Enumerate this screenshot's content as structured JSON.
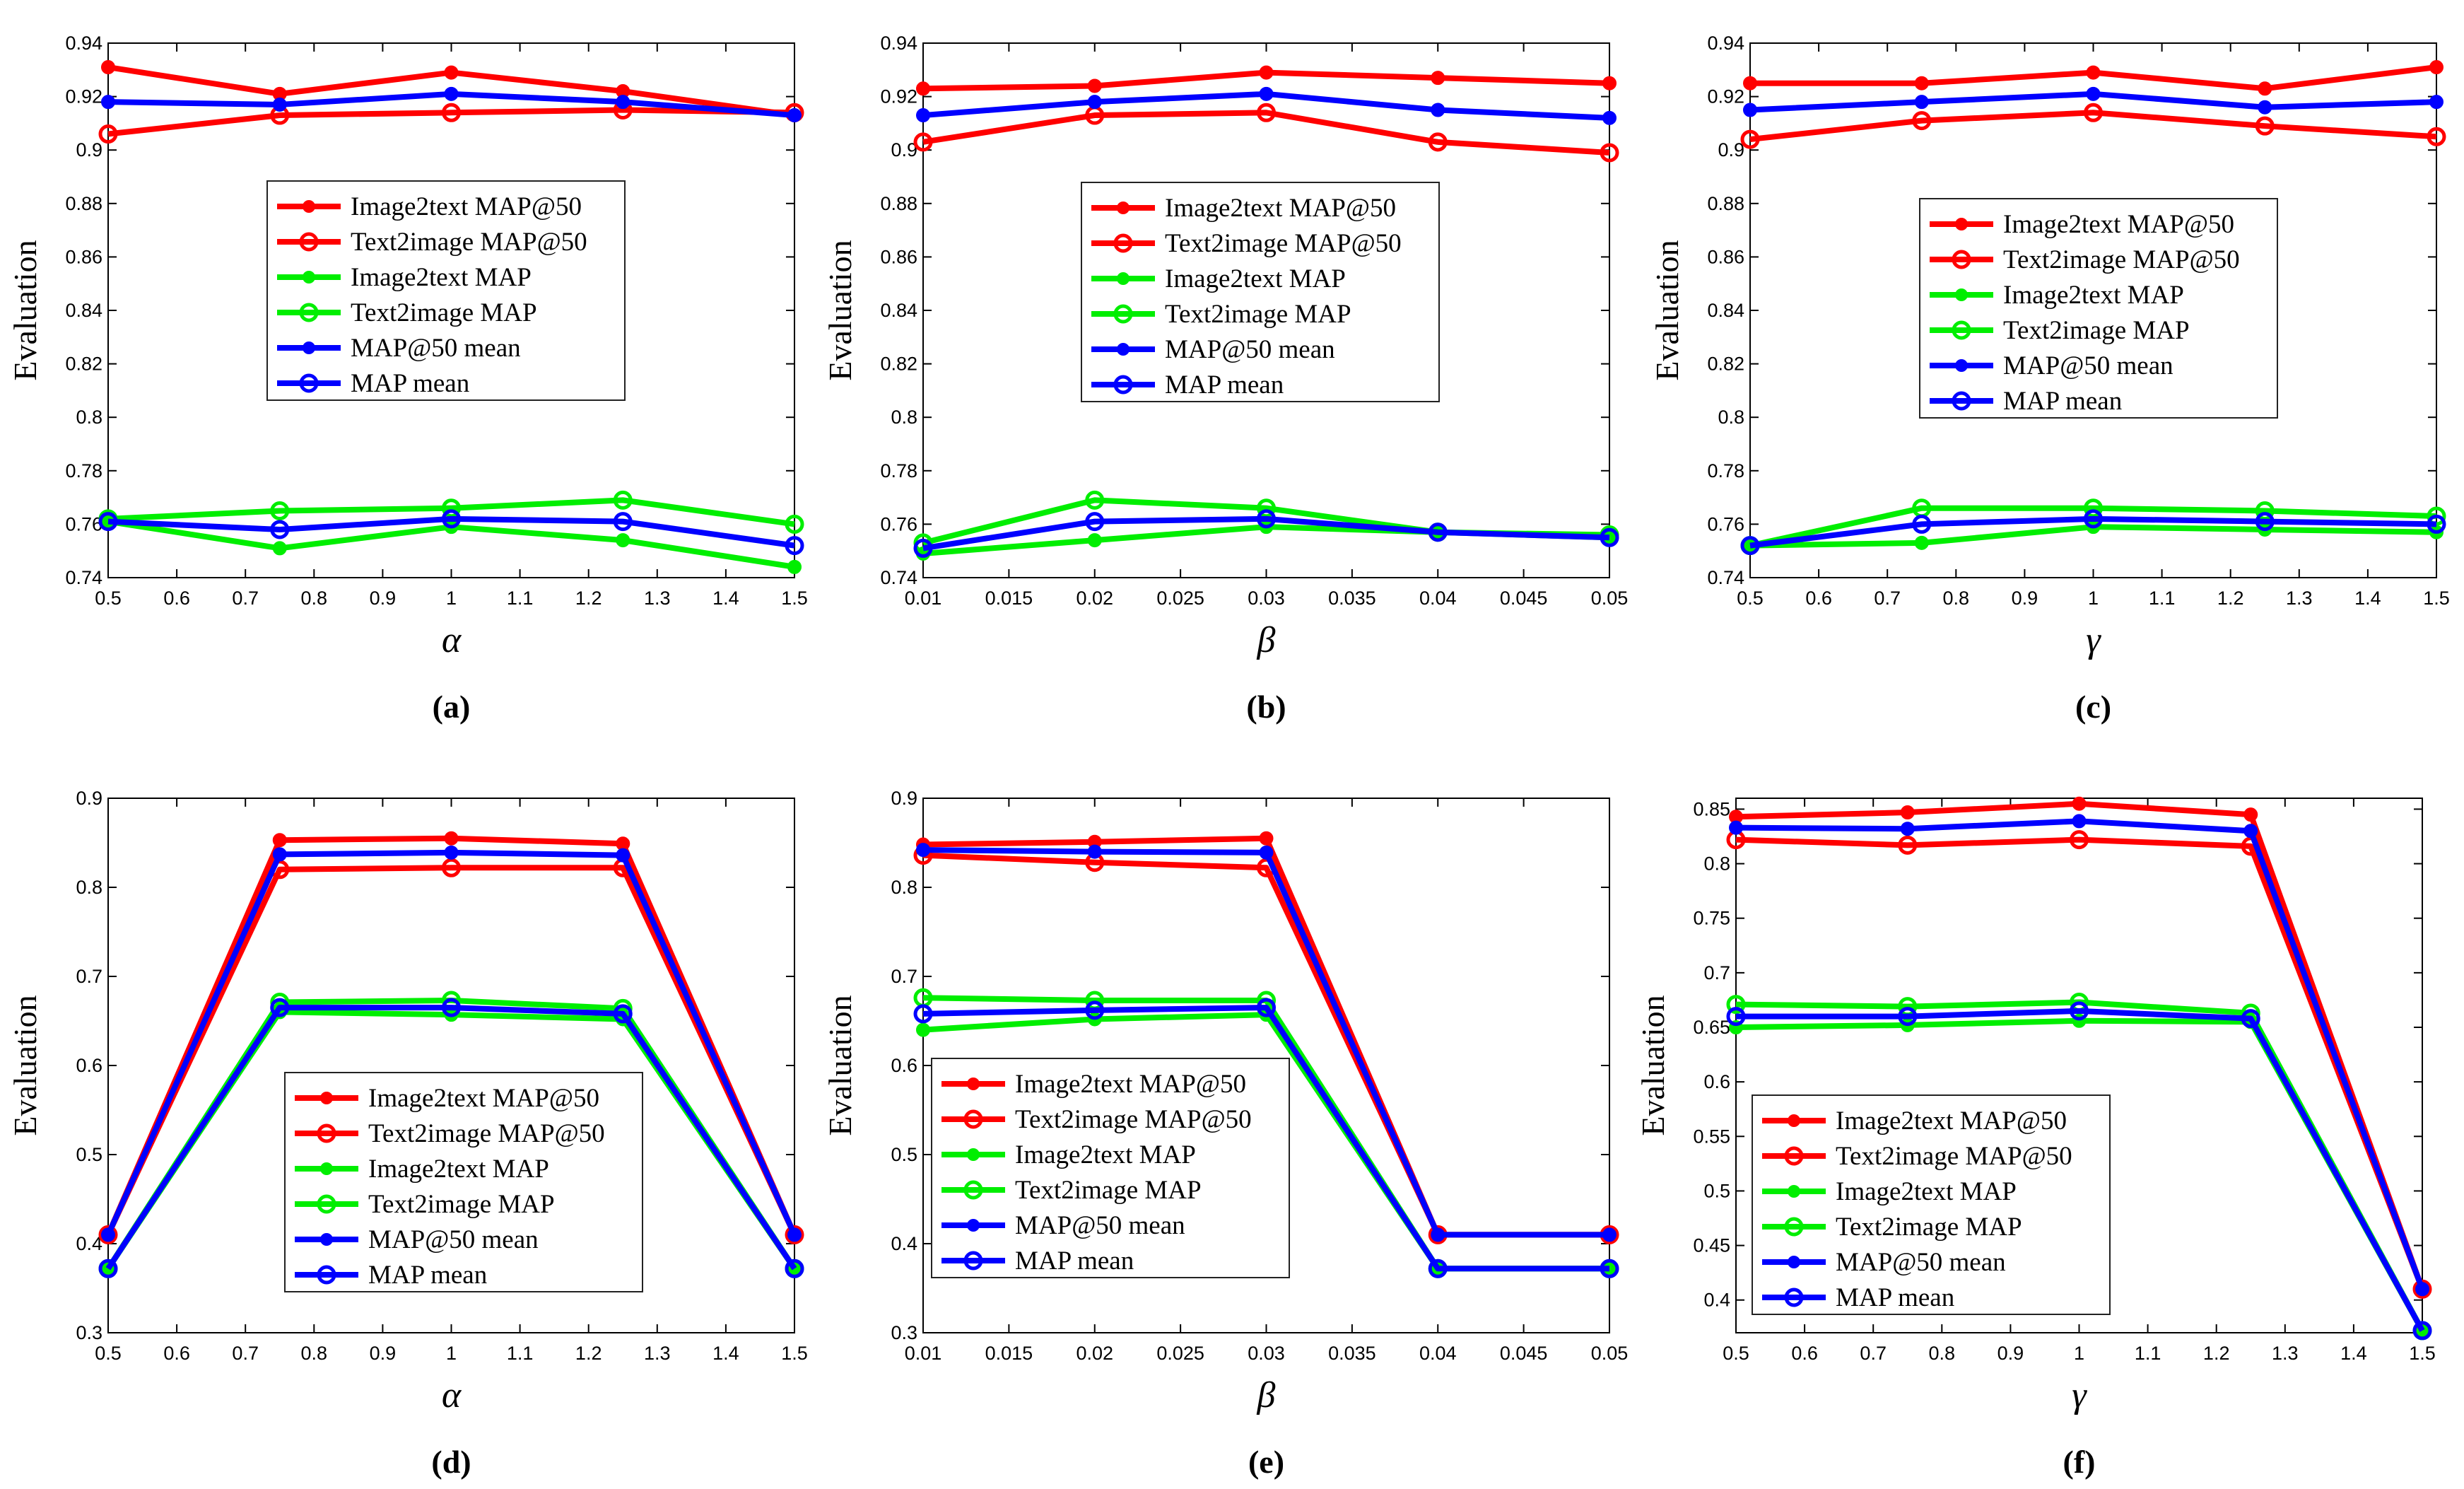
{
  "colors": {
    "image2text_map50": "#ff0000",
    "text2image_map50": "#ff0000",
    "image2text_map": "#00ee00",
    "text2image_map": "#00ee00",
    "map50_mean": "#0000ff",
    "map_mean": "#0000ff"
  },
  "chart_data": [
    {
      "id": "a",
      "type": "line",
      "panel_label": "(a)",
      "xlabel": "α",
      "ylabel": "Evaluation",
      "x": [
        0.5,
        0.75,
        1.0,
        1.25,
        1.5
      ],
      "xlim": [
        0.5,
        1.5
      ],
      "ylim": [
        0.74,
        0.94
      ],
      "xticks": [
        "0.5",
        "0.6",
        "0.7",
        "0.8",
        "0.9",
        "1",
        "1.1",
        "1.2",
        "1.3",
        "1.4",
        "1.5"
      ],
      "yticks": [
        "0.74",
        "0.76",
        "0.78",
        "0.8",
        "0.82",
        "0.84",
        "0.86",
        "0.88",
        "0.9",
        "0.92",
        "0.94"
      ],
      "legend_position": "center",
      "series": [
        {
          "name": "Image2text MAP@50",
          "color": "#ff0000",
          "marker": "dot",
          "values": [
            0.931,
            0.921,
            0.929,
            0.922,
            0.913
          ]
        },
        {
          "name": "Text2image MAP@50",
          "color": "#ff0000",
          "marker": "circle",
          "values": [
            0.906,
            0.913,
            0.914,
            0.915,
            0.914
          ]
        },
        {
          "name": "Image2text MAP",
          "color": "#00ee00",
          "marker": "dot",
          "values": [
            0.761,
            0.751,
            0.759,
            0.754,
            0.744
          ]
        },
        {
          "name": "Text2image MAP",
          "color": "#00ee00",
          "marker": "circle",
          "values": [
            0.762,
            0.765,
            0.766,
            0.769,
            0.76
          ]
        },
        {
          "name": "MAP@50 mean",
          "color": "#0000ff",
          "marker": "dot",
          "values": [
            0.918,
            0.917,
            0.921,
            0.918,
            0.913
          ]
        },
        {
          "name": "MAP mean",
          "color": "#0000ff",
          "marker": "circle",
          "values": [
            0.761,
            0.758,
            0.762,
            0.761,
            0.752
          ]
        }
      ]
    },
    {
      "id": "b",
      "type": "line",
      "panel_label": "(b)",
      "xlabel": "β",
      "ylabel": "Evaluation",
      "x": [
        0.01,
        0.02,
        0.03,
        0.04,
        0.05
      ],
      "xlim": [
        0.01,
        0.05
      ],
      "ylim": [
        0.74,
        0.94
      ],
      "xticks": [
        "0.01",
        "0.015",
        "0.02",
        "0.025",
        "0.03",
        "0.035",
        "0.04",
        "0.045",
        "0.05"
      ],
      "yticks": [
        "0.74",
        "0.76",
        "0.78",
        "0.8",
        "0.82",
        "0.84",
        "0.86",
        "0.88",
        "0.9",
        "0.92",
        "0.94"
      ],
      "legend_position": "center",
      "series": [
        {
          "name": "Image2text MAP@50",
          "color": "#ff0000",
          "marker": "dot",
          "values": [
            0.923,
            0.924,
            0.929,
            0.927,
            0.925
          ]
        },
        {
          "name": "Text2image MAP@50",
          "color": "#ff0000",
          "marker": "circle",
          "values": [
            0.903,
            0.913,
            0.914,
            0.903,
            0.899
          ]
        },
        {
          "name": "Image2text MAP",
          "color": "#00ee00",
          "marker": "dot",
          "values": [
            0.749,
            0.754,
            0.759,
            0.757,
            0.755
          ]
        },
        {
          "name": "Text2image MAP",
          "color": "#00ee00",
          "marker": "circle",
          "values": [
            0.753,
            0.769,
            0.766,
            0.757,
            0.756
          ]
        },
        {
          "name": "MAP@50 mean",
          "color": "#0000ff",
          "marker": "dot",
          "values": [
            0.913,
            0.918,
            0.921,
            0.915,
            0.912
          ]
        },
        {
          "name": "MAP mean",
          "color": "#0000ff",
          "marker": "circle",
          "values": [
            0.751,
            0.761,
            0.762,
            0.757,
            0.755
          ]
        }
      ]
    },
    {
      "id": "c",
      "type": "line",
      "panel_label": "(c)",
      "xlabel": "γ",
      "ylabel": "Evaluation",
      "x": [
        0.5,
        0.75,
        1.0,
        1.25,
        1.5
      ],
      "xlim": [
        0.5,
        1.5
      ],
      "ylim": [
        0.74,
        0.94
      ],
      "xticks": [
        "0.5",
        "0.6",
        "0.7",
        "0.8",
        "0.9",
        "1",
        "1.1",
        "1.2",
        "1.3",
        "1.4",
        "1.5"
      ],
      "yticks": [
        "0.74",
        "0.76",
        "0.78",
        "0.8",
        "0.82",
        "0.84",
        "0.86",
        "0.88",
        "0.9",
        "0.92",
        "0.94"
      ],
      "legend_position": "center",
      "series": [
        {
          "name": "Image2text MAP@50",
          "color": "#ff0000",
          "marker": "dot",
          "values": [
            0.925,
            0.925,
            0.929,
            0.923,
            0.931
          ]
        },
        {
          "name": "Text2image MAP@50",
          "color": "#ff0000",
          "marker": "circle",
          "values": [
            0.904,
            0.911,
            0.914,
            0.909,
            0.905
          ]
        },
        {
          "name": "Image2text MAP",
          "color": "#00ee00",
          "marker": "dot",
          "values": [
            0.752,
            0.753,
            0.759,
            0.758,
            0.757
          ]
        },
        {
          "name": "Text2image MAP",
          "color": "#00ee00",
          "marker": "circle",
          "values": [
            0.752,
            0.766,
            0.766,
            0.765,
            0.763
          ]
        },
        {
          "name": "MAP@50 mean",
          "color": "#0000ff",
          "marker": "dot",
          "values": [
            0.915,
            0.918,
            0.921,
            0.916,
            0.918
          ]
        },
        {
          "name": "MAP mean",
          "color": "#0000ff",
          "marker": "circle",
          "values": [
            0.752,
            0.76,
            0.762,
            0.761,
            0.76
          ]
        }
      ]
    },
    {
      "id": "d",
      "type": "line",
      "panel_label": "(d)",
      "xlabel": "α",
      "ylabel": "Evaluation",
      "x": [
        0.5,
        0.75,
        1.0,
        1.25,
        1.5
      ],
      "xlim": [
        0.5,
        1.5
      ],
      "ylim": [
        0.3,
        0.9
      ],
      "xticks": [
        "0.5",
        "0.6",
        "0.7",
        "0.8",
        "0.9",
        "1",
        "1.1",
        "1.2",
        "1.3",
        "1.4",
        "1.5"
      ],
      "yticks": [
        "0.3",
        "0.4",
        "0.5",
        "0.6",
        "0.7",
        "0.8",
        "0.9"
      ],
      "legend_position": "lower-center",
      "series": [
        {
          "name": "Image2text MAP@50",
          "color": "#ff0000",
          "marker": "dot",
          "values": [
            0.41,
            0.853,
            0.855,
            0.849,
            0.41
          ]
        },
        {
          "name": "Text2image MAP@50",
          "color": "#ff0000",
          "marker": "circle",
          "values": [
            0.41,
            0.82,
            0.822,
            0.822,
            0.41
          ]
        },
        {
          "name": "Image2text MAP",
          "color": "#00ee00",
          "marker": "dot",
          "values": [
            0.372,
            0.66,
            0.657,
            0.652,
            0.372
          ]
        },
        {
          "name": "Text2image MAP",
          "color": "#00ee00",
          "marker": "circle",
          "values": [
            0.372,
            0.671,
            0.673,
            0.664,
            0.372
          ]
        },
        {
          "name": "MAP@50 mean",
          "color": "#0000ff",
          "marker": "dot",
          "values": [
            0.41,
            0.837,
            0.839,
            0.836,
            0.41
          ]
        },
        {
          "name": "MAP mean",
          "color": "#0000ff",
          "marker": "circle",
          "values": [
            0.372,
            0.665,
            0.665,
            0.658,
            0.372
          ]
        }
      ]
    },
    {
      "id": "e",
      "type": "line",
      "panel_label": "(e)",
      "xlabel": "β",
      "ylabel": "Evaluation",
      "x": [
        0.01,
        0.02,
        0.03,
        0.04,
        0.05
      ],
      "xlim": [
        0.01,
        0.05
      ],
      "ylim": [
        0.3,
        0.9
      ],
      "xticks": [
        "0.01",
        "0.015",
        "0.02",
        "0.025",
        "0.03",
        "0.035",
        "0.04",
        "0.045",
        "0.05"
      ],
      "yticks": [
        "0.3",
        "0.4",
        "0.5",
        "0.6",
        "0.7",
        "0.8",
        "0.9"
      ],
      "legend_position": "lower-left",
      "series": [
        {
          "name": "Image2text MAP@50",
          "color": "#ff0000",
          "marker": "dot",
          "values": [
            0.848,
            0.851,
            0.855,
            0.41,
            0.41
          ]
        },
        {
          "name": "Text2image MAP@50",
          "color": "#ff0000",
          "marker": "circle",
          "values": [
            0.836,
            0.828,
            0.822,
            0.41,
            0.41
          ]
        },
        {
          "name": "Image2text MAP",
          "color": "#00ee00",
          "marker": "dot",
          "values": [
            0.64,
            0.652,
            0.657,
            0.372,
            0.372
          ]
        },
        {
          "name": "Text2image MAP",
          "color": "#00ee00",
          "marker": "circle",
          "values": [
            0.676,
            0.673,
            0.673,
            0.372,
            0.372
          ]
        },
        {
          "name": "MAP@50 mean",
          "color": "#0000ff",
          "marker": "dot",
          "values": [
            0.842,
            0.84,
            0.839,
            0.41,
            0.41
          ]
        },
        {
          "name": "MAP mean",
          "color": "#0000ff",
          "marker": "circle",
          "values": [
            0.658,
            0.662,
            0.665,
            0.372,
            0.372
          ]
        }
      ]
    },
    {
      "id": "f",
      "type": "line",
      "panel_label": "(f)",
      "xlabel": "γ",
      "ylabel": "Evaluation",
      "x": [
        0.5,
        0.75,
        1.0,
        1.25,
        1.5
      ],
      "xlim": [
        0.5,
        1.5
      ],
      "ylim": [
        0.37,
        0.86
      ],
      "xticks": [
        "0.5",
        "0.6",
        "0.7",
        "0.8",
        "0.9",
        "1",
        "1.1",
        "1.2",
        "1.3",
        "1.4",
        "1.5"
      ],
      "yticks": [
        "0.4",
        "0.45",
        "0.5",
        "0.55",
        "0.6",
        "0.65",
        "0.7",
        "0.75",
        "0.8",
        "0.85"
      ],
      "legend_position": "lower-left",
      "series": [
        {
          "name": "Image2text MAP@50",
          "color": "#ff0000",
          "marker": "dot",
          "values": [
            0.843,
            0.847,
            0.855,
            0.845,
            0.41
          ]
        },
        {
          "name": "Text2image MAP@50",
          "color": "#ff0000",
          "marker": "circle",
          "values": [
            0.822,
            0.817,
            0.822,
            0.816,
            0.41
          ]
        },
        {
          "name": "Image2text MAP",
          "color": "#00ee00",
          "marker": "dot",
          "values": [
            0.65,
            0.652,
            0.656,
            0.655,
            0.372
          ]
        },
        {
          "name": "Text2image MAP",
          "color": "#00ee00",
          "marker": "circle",
          "values": [
            0.671,
            0.669,
            0.673,
            0.663,
            0.372
          ]
        },
        {
          "name": "MAP@50 mean",
          "color": "#0000ff",
          "marker": "dot",
          "values": [
            0.833,
            0.832,
            0.839,
            0.83,
            0.41
          ]
        },
        {
          "name": "MAP mean",
          "color": "#0000ff",
          "marker": "circle",
          "values": [
            0.66,
            0.66,
            0.665,
            0.658,
            0.372
          ]
        }
      ]
    }
  ]
}
